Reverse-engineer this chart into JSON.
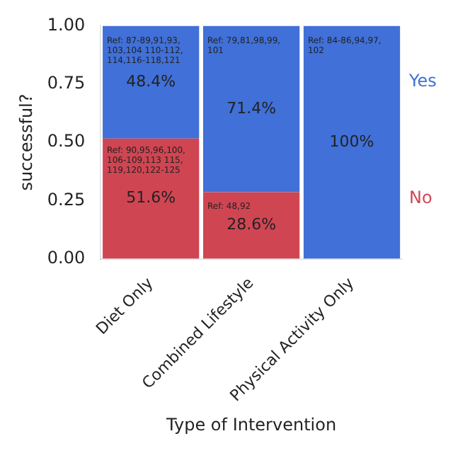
{
  "chart_data": {
    "type": "bar",
    "stacked": true,
    "ylabel": "successful?",
    "xlabel": "Type of Intervention",
    "categories": [
      "Diet Only",
      "Combined Lifestyle",
      "Physical Activity Only"
    ],
    "series": [
      {
        "name": "No",
        "color": "#d04552",
        "values": [
          0.516,
          0.286,
          0
        ],
        "value_labels": [
          "51.6%",
          "28.6%",
          null
        ]
      },
      {
        "name": "Yes",
        "color": "#4070d8",
        "values": [
          0.484,
          0.714,
          1.0
        ],
        "value_labels": [
          "48.4%",
          "71.4%",
          "100%"
        ]
      }
    ],
    "ylim": [
      0,
      1
    ],
    "yticks": [
      {
        "value": 0,
        "label": "0.00"
      },
      {
        "value": 0.25,
        "label": "0.25"
      },
      {
        "value": 0.5,
        "label": "0.50"
      },
      {
        "value": 0.75,
        "label": "0.75"
      },
      {
        "value": 1,
        "label": "1.00"
      }
    ],
    "annotations": [
      "Ref: 87-89,91,93,103,104 110-112,114,116-118,121",
      "Ref: 90,95,96,100,106-109,113 115,119,120,122-125",
      "Ref: 79,81,98,99,101",
      "Ref: 48,92",
      "Ref: 84-86,94,97,102"
    ],
    "grid": false,
    "legend": false
  }
}
